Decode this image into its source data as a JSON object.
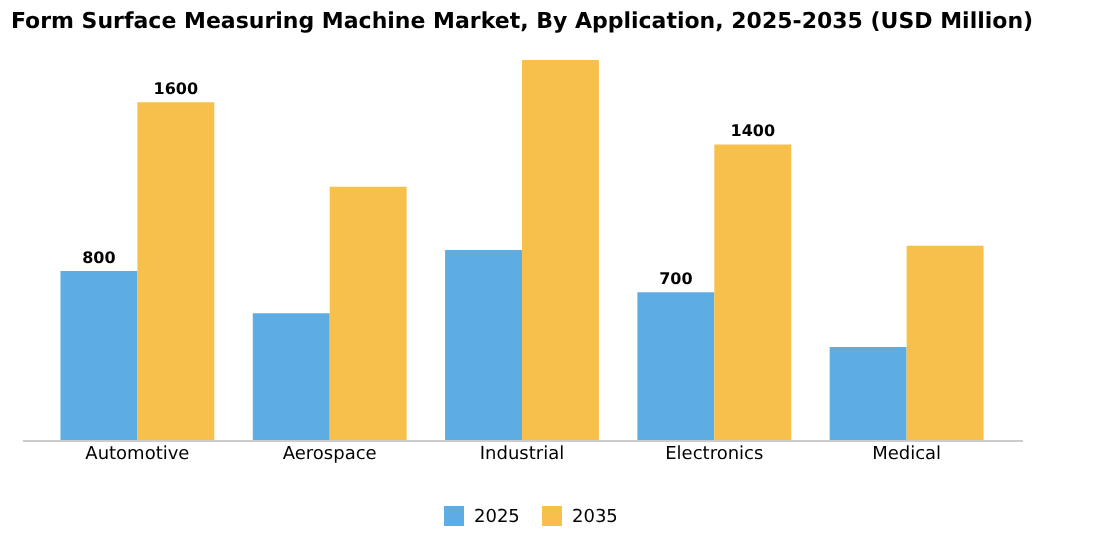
{
  "chart_data": {
    "type": "bar",
    "title": "Form Surface Measuring Machine Market, By Application, 2025-2035 (USD Million)",
    "categories": [
      "Automotive",
      "Aerospace",
      "Industrial",
      "Electronics",
      "Medical"
    ],
    "series": [
      {
        "name": "2025",
        "color": "#5dade2",
        "values": [
          800,
          600,
          900,
          700,
          440
        ],
        "value_labels": [
          "800",
          null,
          null,
          "700",
          null
        ]
      },
      {
        "name": "2035",
        "color": "#f7c04a",
        "values": [
          1600,
          1200,
          1800,
          1400,
          920
        ],
        "value_labels": [
          "1600",
          null,
          null,
          "1400",
          null
        ]
      }
    ],
    "legend": "bottom"
  }
}
